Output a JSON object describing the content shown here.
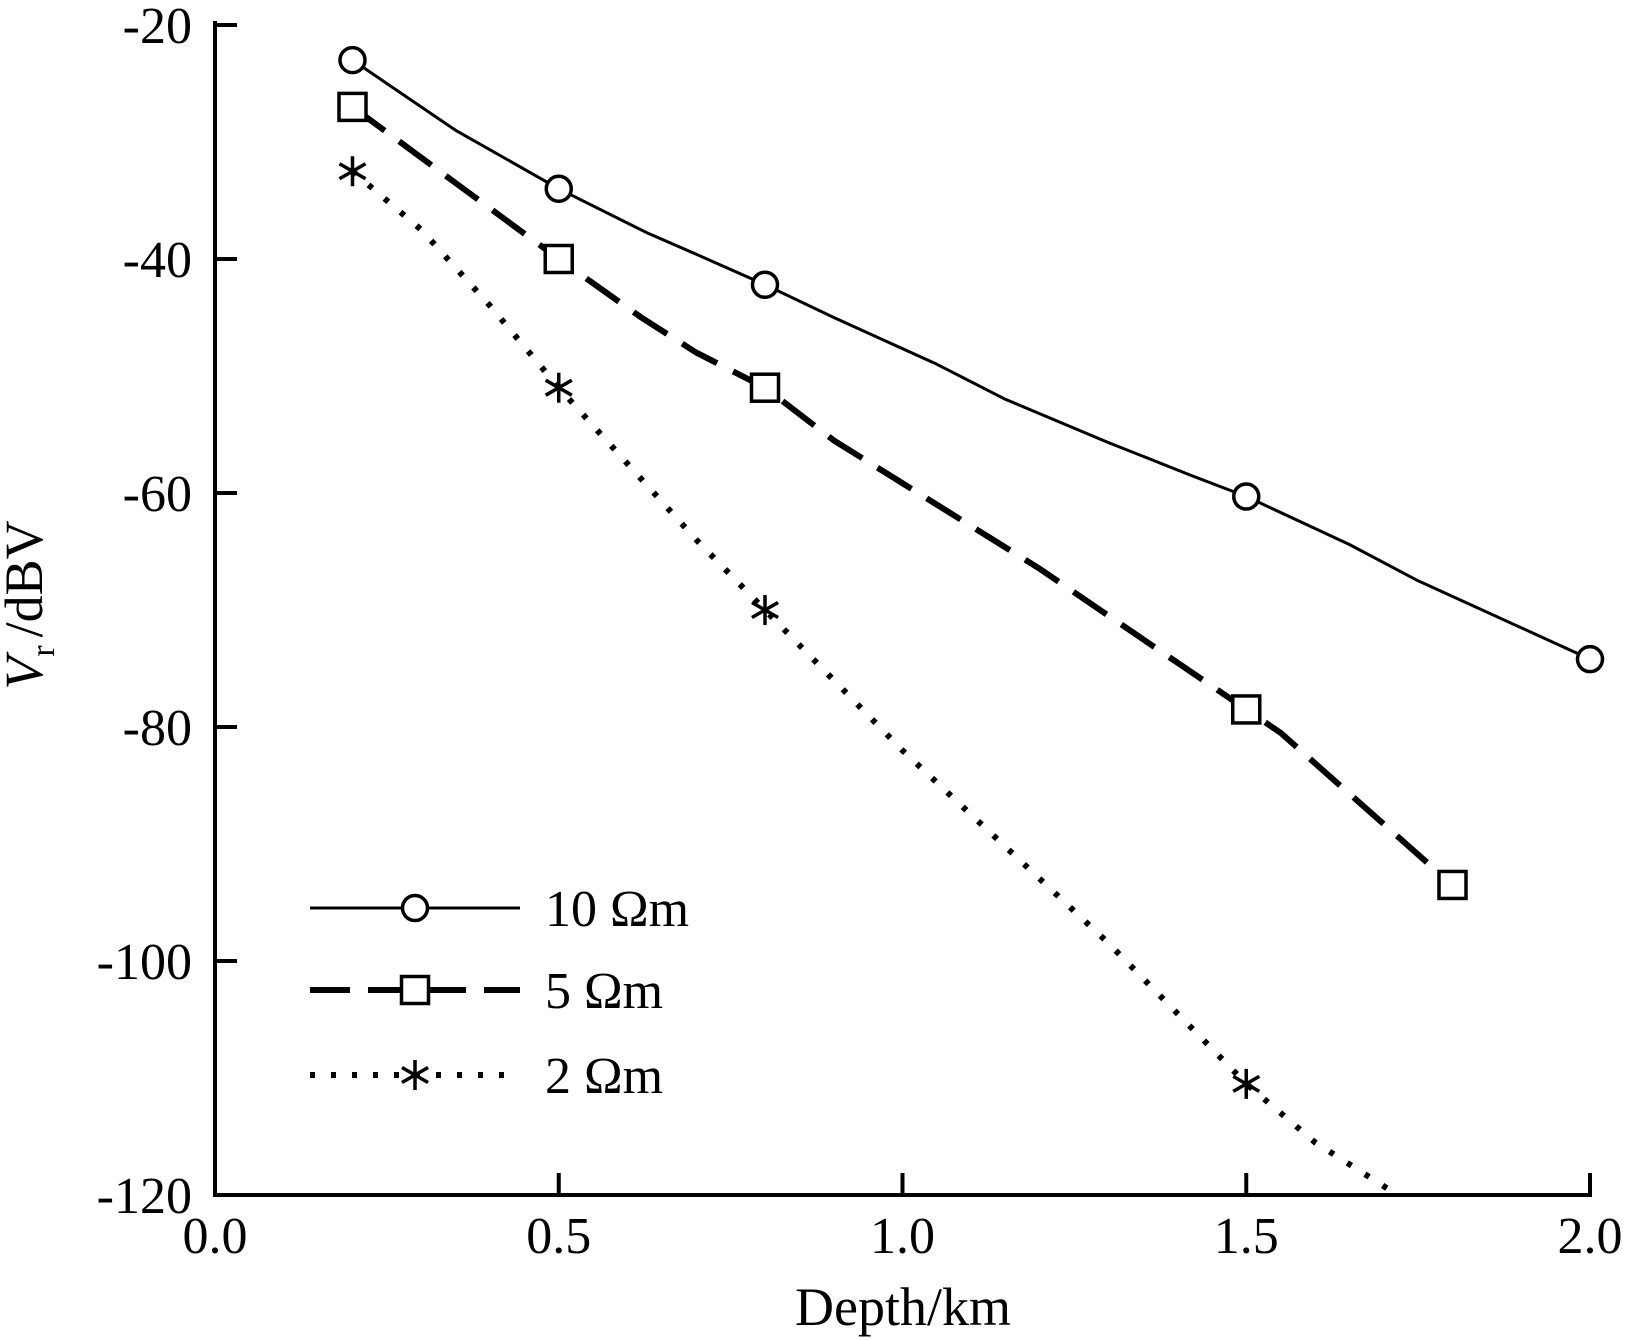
{
  "chart_data": {
    "type": "line",
    "xlabel": "Depth/km",
    "ylabel_main": "V",
    "ylabel_sub": "r",
    "ylabel_unit": "/dBV",
    "xlim": [
      0.0,
      2.0
    ],
    "ylim": [
      -120,
      -20
    ],
    "x_ticks": [
      "0.0",
      "0.5",
      "1.0",
      "1.5",
      "2.0"
    ],
    "y_ticks": [
      "-20",
      "-40",
      "-60",
      "-80",
      "-100",
      "-120"
    ],
    "legend_position": "lower-left",
    "series": [
      {
        "name": "10 Ωm",
        "marker": "circle",
        "line_style": "solid",
        "x": [
          0.2,
          0.35,
          0.5,
          0.63,
          0.7,
          0.8,
          0.9,
          1.05,
          1.15,
          1.3,
          1.42,
          1.5,
          1.65,
          1.75,
          2.0
        ],
        "y": [
          -23,
          -29,
          -34,
          -37.8,
          -39.6,
          -42.2,
          -45,
          -49,
          -52,
          -55.7,
          -58.5,
          -60.3,
          -64.4,
          -67.5,
          -74.2
        ],
        "marker_x": [
          0.2,
          0.5,
          0.8,
          1.5,
          2.0
        ],
        "marker_y": [
          -23,
          -34,
          -42.2,
          -60.3,
          -74.2
        ]
      },
      {
        "name": "5 Ωm",
        "marker": "square",
        "line_style": "dashed",
        "x": [
          0.2,
          0.35,
          0.5,
          0.62,
          0.7,
          0.8,
          0.9,
          1.05,
          1.2,
          1.35,
          1.5,
          1.55,
          1.8
        ],
        "y": [
          -27,
          -33.5,
          -40,
          -45,
          -48,
          -51,
          -55.5,
          -61,
          -66.5,
          -72.5,
          -78.5,
          -80.5,
          -93.5
        ],
        "marker_x": [
          0.2,
          0.5,
          0.8,
          1.5,
          1.8
        ],
        "marker_y": [
          -27,
          -40,
          -51,
          -78.5,
          -93.5
        ]
      },
      {
        "name": "2 Ωm",
        "marker": "asterisk",
        "line_style": "dotted",
        "x": [
          0.2,
          0.3,
          0.4,
          0.5,
          0.6,
          0.7,
          0.8,
          0.9,
          1.0,
          1.1,
          1.2,
          1.3,
          1.4,
          1.5,
          1.6,
          1.72
        ],
        "y": [
          -32.5,
          -37.5,
          -44,
          -51,
          -57.5,
          -64,
          -70,
          -76,
          -82,
          -87.5,
          -93,
          -98.5,
          -104.5,
          -110.5,
          -115.5,
          -120
        ],
        "marker_x": [
          0.2,
          0.5,
          0.8,
          1.5
        ],
        "marker_y": [
          -32.5,
          -51,
          -70,
          -110.5
        ]
      }
    ]
  }
}
